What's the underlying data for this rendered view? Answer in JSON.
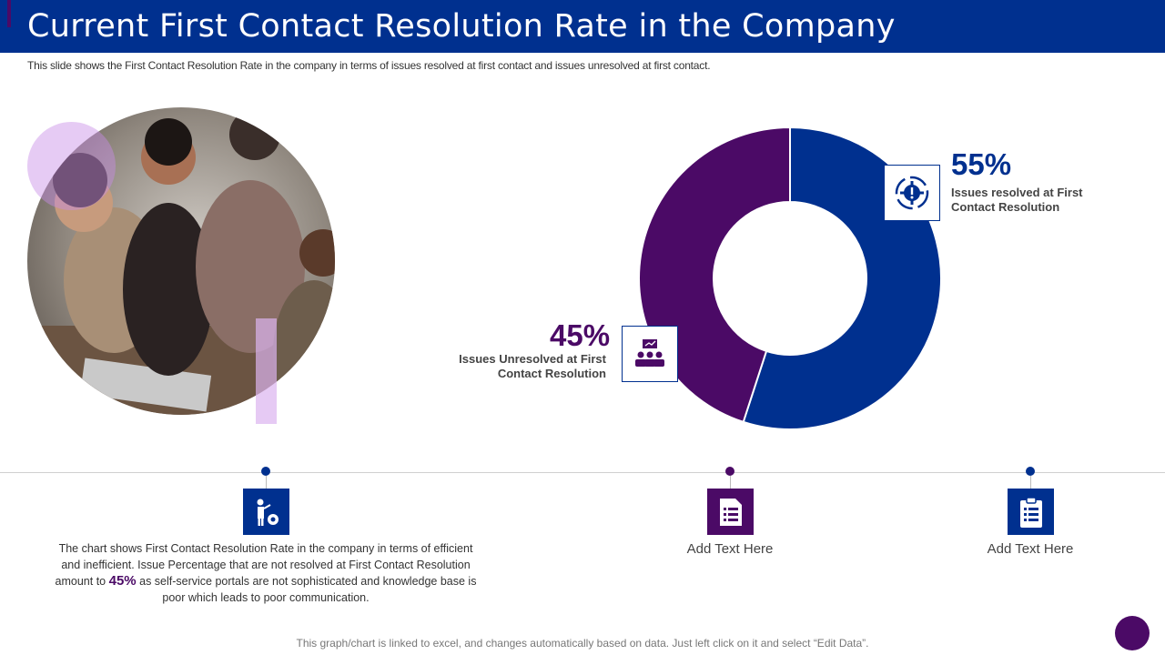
{
  "title": "Current First Contact Resolution Rate in the Company",
  "subtitle": "This slide shows the First Contact Resolution Rate in the company in terms of issues resolved at first contact and issues unresolved at first contact.",
  "colors": {
    "title_bar": "#00308f",
    "resolved": "#00308f",
    "unresolved": "#4b0a66",
    "accent_light": "#d9a8ef"
  },
  "chart_data": {
    "type": "pie",
    "variant": "donut",
    "categories": [
      "Issues resolved at First Contact Resolution",
      "Issues Unresolved at First Contact Resolution"
    ],
    "values": [
      55,
      45
    ],
    "unit": "%",
    "colors": [
      "#00308f",
      "#4b0a66"
    ],
    "data_labels": [
      "55%",
      "45%"
    ]
  },
  "callouts": {
    "resolved": {
      "percent": "55%",
      "label": "Issues  resolved at First Contact Resolution",
      "icon": "gear-cycle-icon"
    },
    "unresolved": {
      "percent": "45%",
      "label": "Issues  Unresolved at First Contact Resolution",
      "icon": "team-meeting-icon"
    }
  },
  "timeline": {
    "item1": {
      "icon": "presenter-gear-icon",
      "text_before": "The chart shows First Contact Resolution Rate in the company in terms of efficient and inefficient. Issue Percentage that are not resolved  at First Contact Resolution amount to ",
      "highlight": "45%",
      "text_after": " as self-service portals are not sophisticated and knowledge base is poor which leads to poor communication."
    },
    "item2": {
      "icon": "document-list-icon",
      "text": "Add Text Here"
    },
    "item3": {
      "icon": "clipboard-checklist-icon",
      "text": "Add Text Here"
    }
  },
  "footer": "This graph/chart is linked to excel,  and changes automatically based on data. Just left click on it and select “Edit Data”."
}
